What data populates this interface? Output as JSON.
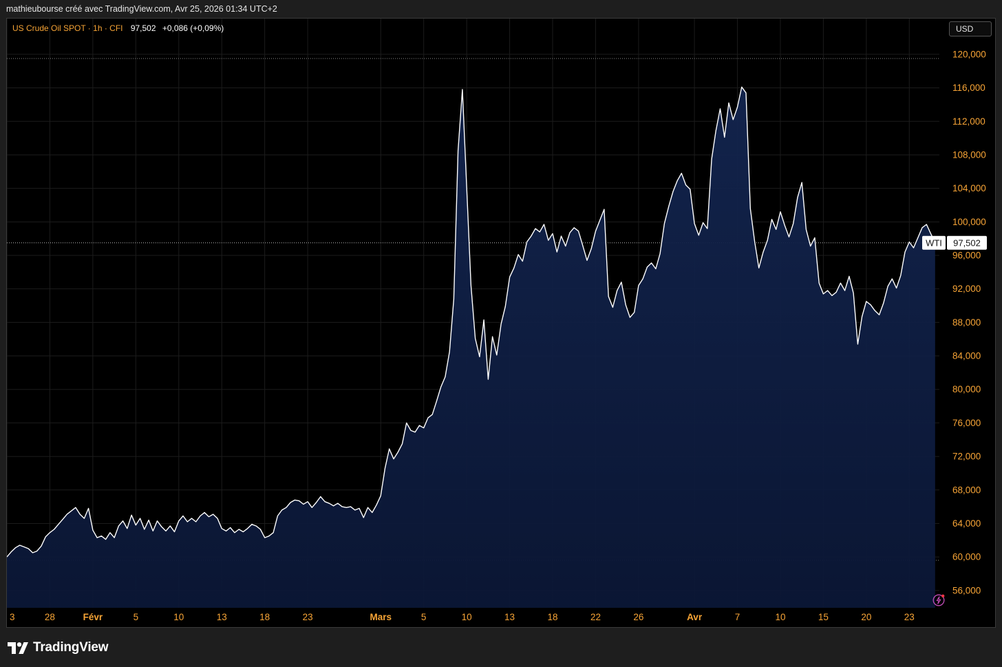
{
  "header": {
    "caption": "mathieubourse créé avec TradingView.com, Avr 25, 2026 01:34 UTC+2"
  },
  "legend": {
    "symbol": "US Crude Oil SPOT · 1h · CFI",
    "last": "97,502",
    "change": "+0,086 (+0,09%)"
  },
  "currency_button": {
    "label": "USD"
  },
  "price_tag": {
    "name": "WTI",
    "value": "97,502"
  },
  "footer": {
    "brand": "TradingView"
  },
  "icons": {
    "alert": "lightning-icon",
    "logo": "tradingview-logo-icon"
  },
  "colors": {
    "background": "#000000",
    "line": "#ffffff",
    "area_fill": "#0e1e45",
    "axis_text": "#f7a436",
    "legend_symbol": "#f7a436"
  },
  "chart_data": {
    "type": "area",
    "title": "",
    "xlabel": "",
    "ylabel": "",
    "x_ticks": [
      {
        "label": "3",
        "x": 0,
        "major": false
      },
      {
        "label": "28",
        "x": 5,
        "major": false
      },
      {
        "label": "Févr",
        "x": 10,
        "major": true
      },
      {
        "label": "5",
        "x": 15,
        "major": false
      },
      {
        "label": "10",
        "x": 20,
        "major": false
      },
      {
        "label": "13",
        "x": 25,
        "major": false
      },
      {
        "label": "18",
        "x": 30,
        "major": false
      },
      {
        "label": "23",
        "x": 35,
        "major": false
      },
      {
        "label": "Mars",
        "x": 43.5,
        "major": true
      },
      {
        "label": "5",
        "x": 48.5,
        "major": false
      },
      {
        "label": "10",
        "x": 53.5,
        "major": false
      },
      {
        "label": "13",
        "x": 58.5,
        "major": false
      },
      {
        "label": "18",
        "x": 63.5,
        "major": false
      },
      {
        "label": "22",
        "x": 68.5,
        "major": false
      },
      {
        "label": "26",
        "x": 73.5,
        "major": false
      },
      {
        "label": "Avr",
        "x": 80,
        "major": true
      },
      {
        "label": "7",
        "x": 85,
        "major": false
      },
      {
        "label": "10",
        "x": 90,
        "major": false
      },
      {
        "label": "15",
        "x": 95,
        "major": false
      },
      {
        "label": "20",
        "x": 100,
        "major": false
      },
      {
        "label": "23",
        "x": 105,
        "major": false
      }
    ],
    "y_ticks": [
      "120,000",
      "116,000",
      "112,000",
      "108,000",
      "104,000",
      "100,000",
      "96,000",
      "92,000",
      "88,000",
      "84,000",
      "80,000",
      "76,000",
      "72,000",
      "68,000",
      "64,000",
      "60,000",
      "56,000"
    ],
    "xlim": [
      0,
      108.5
    ],
    "ylim": [
      55000,
      121000
    ],
    "reference_lines": [
      119500,
      59600
    ],
    "current_price": 97502,
    "series": [
      {
        "points": [
          [
            0,
            60000
          ],
          [
            0.5,
            60600
          ],
          [
            1,
            61100
          ],
          [
            1.5,
            61400
          ],
          [
            2,
            61200
          ],
          [
            2.5,
            61000
          ],
          [
            3,
            60500
          ],
          [
            3.5,
            60700
          ],
          [
            4,
            61300
          ],
          [
            4.5,
            62400
          ],
          [
            5,
            62900
          ],
          [
            5.5,
            63300
          ],
          [
            6,
            63900
          ],
          [
            6.5,
            64500
          ],
          [
            7,
            65100
          ],
          [
            7.5,
            65500
          ],
          [
            8,
            65900
          ],
          [
            8.5,
            65100
          ],
          [
            9,
            64600
          ],
          [
            9.5,
            65800
          ],
          [
            10,
            63200
          ],
          [
            10.5,
            62300
          ],
          [
            11,
            62500
          ],
          [
            11.5,
            62100
          ],
          [
            12,
            62900
          ],
          [
            12.5,
            62300
          ],
          [
            13,
            63700
          ],
          [
            13.5,
            64300
          ],
          [
            14,
            63400
          ],
          [
            14.5,
            65000
          ],
          [
            15,
            63800
          ],
          [
            15.5,
            64600
          ],
          [
            16,
            63300
          ],
          [
            16.5,
            64400
          ],
          [
            17,
            63100
          ],
          [
            17.5,
            64300
          ],
          [
            18,
            63600
          ],
          [
            18.5,
            63100
          ],
          [
            19,
            63700
          ],
          [
            19.5,
            63000
          ],
          [
            20,
            64300
          ],
          [
            20.5,
            64900
          ],
          [
            21,
            64200
          ],
          [
            21.5,
            64600
          ],
          [
            22,
            64200
          ],
          [
            22.5,
            64900
          ],
          [
            23,
            65300
          ],
          [
            23.5,
            64800
          ],
          [
            24,
            65100
          ],
          [
            24.5,
            64600
          ],
          [
            25,
            63400
          ],
          [
            25.5,
            63100
          ],
          [
            26,
            63500
          ],
          [
            26.5,
            62900
          ],
          [
            27,
            63300
          ],
          [
            27.5,
            63000
          ],
          [
            28,
            63400
          ],
          [
            28.5,
            63900
          ],
          [
            29,
            63700
          ],
          [
            29.5,
            63300
          ],
          [
            30,
            62300
          ],
          [
            30.5,
            62500
          ],
          [
            31,
            62900
          ],
          [
            31.5,
            64900
          ],
          [
            32,
            65600
          ],
          [
            32.5,
            65900
          ],
          [
            33,
            66500
          ],
          [
            33.5,
            66800
          ],
          [
            34,
            66700
          ],
          [
            34.5,
            66300
          ],
          [
            35,
            66600
          ],
          [
            35.5,
            65900
          ],
          [
            36,
            66500
          ],
          [
            36.5,
            67200
          ],
          [
            37,
            66600
          ],
          [
            37.5,
            66400
          ],
          [
            38,
            66100
          ],
          [
            38.5,
            66400
          ],
          [
            39,
            66000
          ],
          [
            39.5,
            65900
          ],
          [
            40,
            66000
          ],
          [
            40.5,
            65600
          ],
          [
            41,
            65800
          ],
          [
            41.5,
            64700
          ],
          [
            42,
            65900
          ],
          [
            42.5,
            65300
          ],
          [
            43,
            66200
          ],
          [
            43.5,
            67300
          ],
          [
            44,
            70600
          ],
          [
            44.5,
            72900
          ],
          [
            45,
            71700
          ],
          [
            45.5,
            72500
          ],
          [
            46,
            73500
          ],
          [
            46.5,
            76000
          ],
          [
            47,
            75100
          ],
          [
            47.5,
            74900
          ],
          [
            48,
            75700
          ],
          [
            48.5,
            75400
          ],
          [
            49,
            76600
          ],
          [
            49.5,
            77000
          ],
          [
            50,
            78600
          ],
          [
            50.5,
            80300
          ],
          [
            51,
            81500
          ],
          [
            51.5,
            84500
          ],
          [
            52,
            90800
          ],
          [
            52.5,
            108500
          ],
          [
            53,
            115800
          ],
          [
            53.5,
            104200
          ],
          [
            54,
            92400
          ],
          [
            54.5,
            86100
          ],
          [
            55,
            83900
          ],
          [
            55.5,
            88300
          ],
          [
            56,
            81200
          ],
          [
            56.5,
            86300
          ],
          [
            57,
            84100
          ],
          [
            57.5,
            87800
          ],
          [
            58,
            89900
          ],
          [
            58.5,
            93400
          ],
          [
            59,
            94500
          ],
          [
            59.5,
            96100
          ],
          [
            60,
            95300
          ],
          [
            60.5,
            97600
          ],
          [
            61,
            98300
          ],
          [
            61.5,
            99200
          ],
          [
            62,
            98800
          ],
          [
            62.5,
            99700
          ],
          [
            63,
            97800
          ],
          [
            63.5,
            98600
          ],
          [
            64,
            96400
          ],
          [
            64.5,
            98300
          ],
          [
            65,
            97100
          ],
          [
            65.5,
            98700
          ],
          [
            66,
            99300
          ],
          [
            66.5,
            98900
          ],
          [
            67,
            97200
          ],
          [
            67.5,
            95400
          ],
          [
            68,
            96800
          ],
          [
            68.5,
            98900
          ],
          [
            69,
            100200
          ],
          [
            69.5,
            101500
          ],
          [
            70,
            91100
          ],
          [
            70.5,
            89800
          ],
          [
            71,
            91800
          ],
          [
            71.5,
            92800
          ],
          [
            72,
            90100
          ],
          [
            72.5,
            88600
          ],
          [
            73,
            89200
          ],
          [
            73.5,
            92400
          ],
          [
            74,
            93200
          ],
          [
            74.5,
            94600
          ],
          [
            75,
            95100
          ],
          [
            75.5,
            94400
          ],
          [
            76,
            96200
          ],
          [
            76.5,
            99800
          ],
          [
            77,
            101800
          ],
          [
            77.5,
            103600
          ],
          [
            78,
            104900
          ],
          [
            78.5,
            105800
          ],
          [
            79,
            104400
          ],
          [
            79.5,
            103900
          ],
          [
            80,
            99800
          ],
          [
            80.5,
            98400
          ],
          [
            81,
            99900
          ],
          [
            81.5,
            99200
          ],
          [
            82,
            107500
          ],
          [
            82.5,
            110900
          ],
          [
            83,
            113500
          ],
          [
            83.5,
            110100
          ],
          [
            84,
            114200
          ],
          [
            84.5,
            112200
          ],
          [
            85,
            113700
          ],
          [
            85.5,
            116100
          ],
          [
            86,
            115400
          ],
          [
            86.5,
            101600
          ],
          [
            87,
            97700
          ],
          [
            87.5,
            94500
          ],
          [
            88,
            96400
          ],
          [
            88.5,
            97800
          ],
          [
            89,
            100300
          ],
          [
            89.5,
            99100
          ],
          [
            90,
            101200
          ],
          [
            90.5,
            99600
          ],
          [
            91,
            98200
          ],
          [
            91.5,
            99800
          ],
          [
            92,
            102900
          ],
          [
            92.5,
            104700
          ],
          [
            93,
            99100
          ],
          [
            93.5,
            97100
          ],
          [
            94,
            98100
          ],
          [
            94.5,
            92700
          ],
          [
            95,
            91400
          ],
          [
            95.5,
            91800
          ],
          [
            96,
            91200
          ],
          [
            96.5,
            91600
          ],
          [
            97,
            92700
          ],
          [
            97.5,
            91800
          ],
          [
            98,
            93500
          ],
          [
            98.5,
            91500
          ],
          [
            99,
            85400
          ],
          [
            99.5,
            88700
          ],
          [
            100,
            90500
          ],
          [
            100.5,
            90100
          ],
          [
            101,
            89400
          ],
          [
            101.5,
            88900
          ],
          [
            102,
            90300
          ],
          [
            102.5,
            92300
          ],
          [
            103,
            93200
          ],
          [
            103.5,
            92100
          ],
          [
            104,
            93600
          ],
          [
            104.5,
            96400
          ],
          [
            105,
            97600
          ],
          [
            105.5,
            96900
          ],
          [
            106,
            98100
          ],
          [
            106.5,
            99300
          ],
          [
            107,
            99700
          ],
          [
            107.5,
            98600
          ],
          [
            108,
            97500
          ]
        ]
      }
    ]
  }
}
